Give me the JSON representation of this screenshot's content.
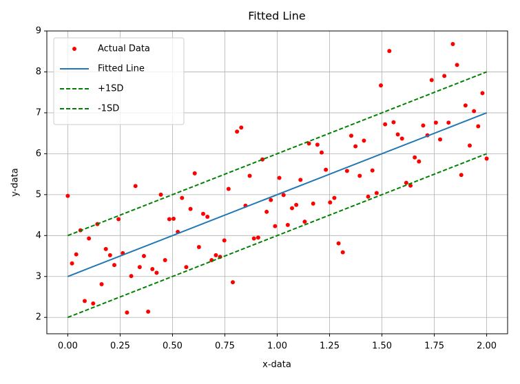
{
  "chart_data": {
    "type": "scatter",
    "title": "Fitted Line",
    "x_label": "x-data",
    "y_label": "y-data",
    "xlim": [
      -0.1,
      2.1
    ],
    "ylim": [
      1.6,
      9.0
    ],
    "xticks": [
      {
        "value": 0,
        "label": "0.00"
      },
      {
        "value": 0.25,
        "label": "0.25"
      },
      {
        "value": 0.5,
        "label": "0.50"
      },
      {
        "value": 0.75,
        "label": "0.75"
      },
      {
        "value": 1,
        "label": "1.00"
      },
      {
        "value": 1.25,
        "label": "1.25"
      },
      {
        "value": 1.5,
        "label": "1.50"
      },
      {
        "value": 1.75,
        "label": "1.75"
      },
      {
        "value": 2,
        "label": "2.00"
      }
    ],
    "yticks": [
      2,
      3,
      4,
      5,
      6,
      7,
      8,
      9
    ],
    "grid": true,
    "legend": "upper left",
    "series": [
      {
        "name": "Actual Data",
        "color": "#ff0000",
        "style": "markers",
        "x": [
          0,
          0.0202,
          0.0404,
          0.0606,
          0.0808,
          0.101,
          0.1212,
          0.1414,
          0.1616,
          0.1818,
          0.202,
          0.2222,
          0.2424,
          0.2626,
          0.2828,
          0.303,
          0.3232,
          0.3434,
          0.3636,
          0.3838,
          0.404,
          0.4242,
          0.4444,
          0.4646,
          0.4848,
          0.5051,
          0.5253,
          0.5455,
          0.5657,
          0.5859,
          0.6061,
          0.6263,
          0.6465,
          0.6667,
          0.6869,
          0.7071,
          0.7273,
          0.7475,
          0.7677,
          0.7879,
          0.8081,
          0.8283,
          0.8485,
          0.8687,
          0.8889,
          0.9091,
          0.9293,
          0.9495,
          0.9697,
          0.9899,
          1.0101,
          1.0303,
          1.0505,
          1.0707,
          1.0909,
          1.1111,
          1.1313,
          1.1515,
          1.1717,
          1.1919,
          1.2121,
          1.2323,
          1.2525,
          1.2727,
          1.2929,
          1.3131,
          1.3333,
          1.3535,
          1.3737,
          1.3939,
          1.4141,
          1.4343,
          1.4545,
          1.4747,
          1.4949,
          1.5152,
          1.5354,
          1.5556,
          1.5758,
          1.596,
          1.6162,
          1.6364,
          1.6566,
          1.6768,
          1.697,
          1.7172,
          1.7374,
          1.7576,
          1.7778,
          1.798,
          1.8182,
          1.8384,
          1.8586,
          1.8788,
          1.899,
          1.9192,
          1.9394,
          1.9596,
          1.9798,
          2
        ],
        "values": [
          4.97,
          3.32,
          3.54,
          4.13,
          2.4,
          3.93,
          2.34,
          4.28,
          2.81,
          3.67,
          3.52,
          3.28,
          4.4,
          3.57,
          2.12,
          3.01,
          5.21,
          3.23,
          3.5,
          2.14,
          3.18,
          3.09,
          5.0,
          3.4,
          4.4,
          4.41,
          4.09,
          4.92,
          3.23,
          4.65,
          5.52,
          3.72,
          4.53,
          4.46,
          3.4,
          3.52,
          3.48,
          3.88,
          5.14,
          2.86,
          6.54,
          6.64,
          4.73,
          5.46,
          3.93,
          3.95,
          5.86,
          4.58,
          4.87,
          4.23,
          5.41,
          4.99,
          4.26,
          4.67,
          4.75,
          5.36,
          4.34,
          6.25,
          4.78,
          6.22,
          6.03,
          5.61,
          4.81,
          4.92,
          3.81,
          3.59,
          5.58,
          6.44,
          6.18,
          5.46,
          6.32,
          4.95,
          5.59,
          5.04,
          7.67,
          6.72,
          8.51,
          6.77,
          6.47,
          6.37,
          5.29,
          5.22,
          5.91,
          5.81,
          6.69,
          6.45,
          7.8,
          6.76,
          6.35,
          7.9,
          6.76,
          8.68,
          8.17,
          5.48,
          7.18,
          6.2,
          7.04,
          6.67,
          7.48,
          5.88
        ]
      },
      {
        "name": "Fitted Line",
        "color": "#1f77b4",
        "style": "solid",
        "x": [
          0,
          2
        ],
        "values": [
          3,
          7
        ]
      },
      {
        "name": "+1SD",
        "color": "#008000",
        "style": "dashed",
        "x": [
          0,
          2
        ],
        "values": [
          4,
          8
        ]
      },
      {
        "name": "-1SD",
        "color": "#008000",
        "style": "dashed",
        "x": [
          0,
          2
        ],
        "values": [
          2,
          6
        ]
      }
    ]
  }
}
